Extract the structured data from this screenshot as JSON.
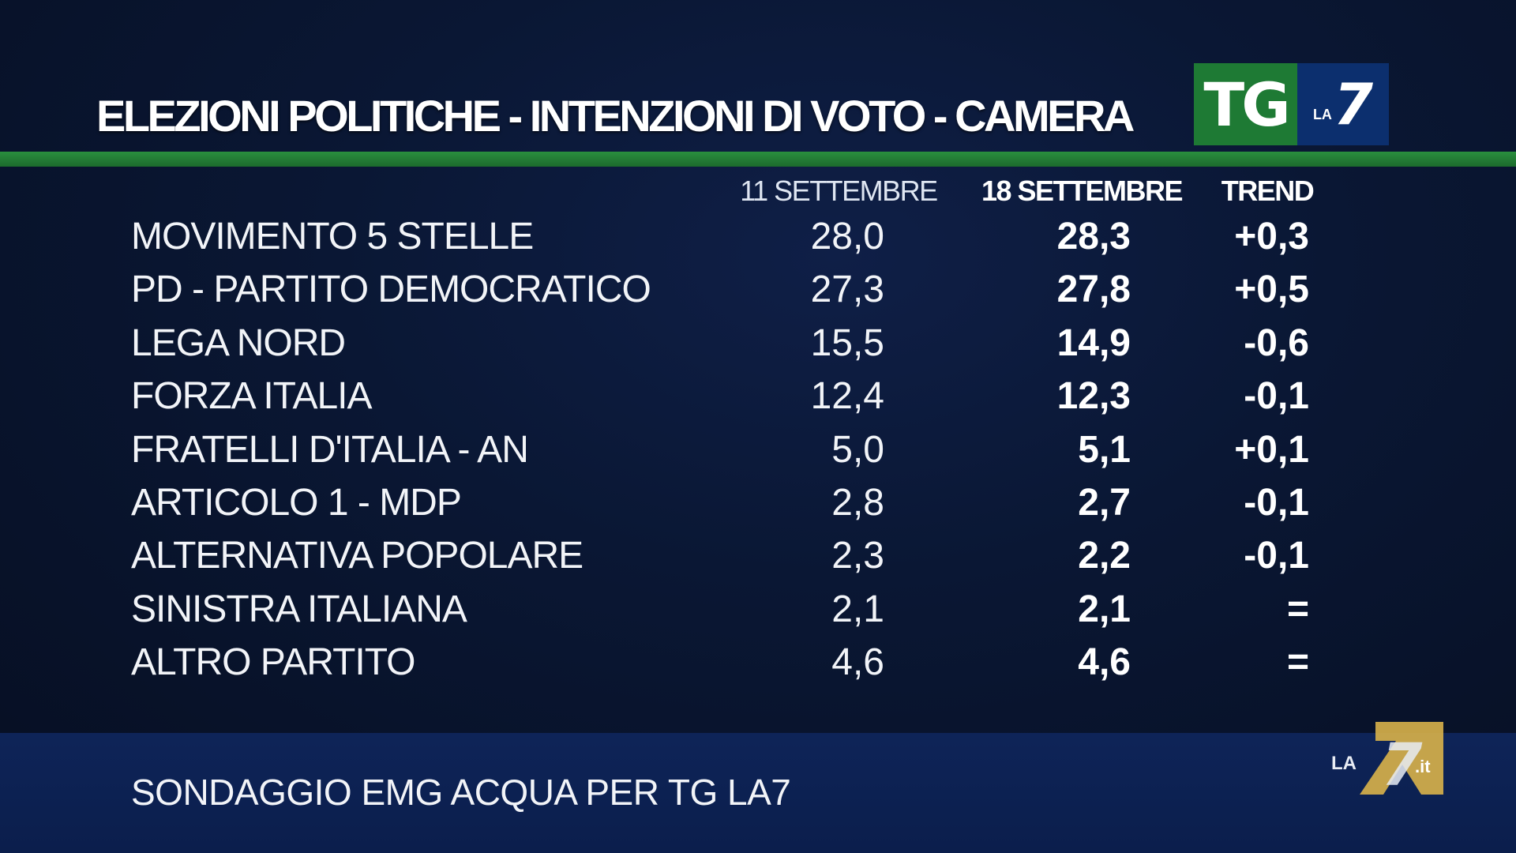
{
  "header": {
    "title": "ELEZIONI POLITICHE - INTENZIONI DI VOTO - CAMERA",
    "logo_tg": "TG",
    "logo_la": "LA",
    "logo_seven": "7"
  },
  "colors": {
    "background": "#0a1734",
    "green_bar": "#1e7a34",
    "logo_green": "#1e7a34",
    "logo_blue": "#0c2f6e",
    "footer_band": "#0e2458",
    "corner_logo_gold": "#d9b24a",
    "text": "#ffffff"
  },
  "chart_data": {
    "type": "table",
    "title": "ELEZIONI POLITICHE - INTENZIONI DI VOTO - CAMERA",
    "columns": [
      "11 SETTEMBRE",
      "18 SETTEMBRE",
      "TREND"
    ],
    "rows": [
      {
        "party": "MOVIMENTO 5 STELLE",
        "v1": "28,0",
        "v2": "28,3",
        "trend": "+0,3"
      },
      {
        "party": "PD - PARTITO DEMOCRATICO",
        "v1": "27,3",
        "v2": "27,8",
        "trend": "+0,5"
      },
      {
        "party": "LEGA NORD",
        "v1": "15,5",
        "v2": "14,9",
        "trend": "-0,6"
      },
      {
        "party": "FORZA ITALIA",
        "v1": "12,4",
        "v2": "12,3",
        "trend": "-0,1"
      },
      {
        "party": "FRATELLI D'ITALIA - AN",
        "v1": "5,0",
        "v2": "5,1",
        "trend": "+0,1"
      },
      {
        "party": "ARTICOLO 1 - MDP",
        "v1": "2,8",
        "v2": "2,7",
        "trend": "-0,1"
      },
      {
        "party": "ALTERNATIVA POPOLARE",
        "v1": "2,3",
        "v2": "2,2",
        "trend": "-0,1"
      },
      {
        "party": "SINISTRA ITALIANA",
        "v1": "2,1",
        "v2": "2,1",
        "trend": "="
      },
      {
        "party": "ALTRO PARTITO",
        "v1": "4,6",
        "v2": "4,6",
        "trend": "="
      }
    ]
  },
  "footer": {
    "source": "SONDAGGIO EMG ACQUA PER TG LA7",
    "corner_logo_la": "LA",
    "corner_logo_seven": "7",
    "corner_logo_it": ".it"
  }
}
